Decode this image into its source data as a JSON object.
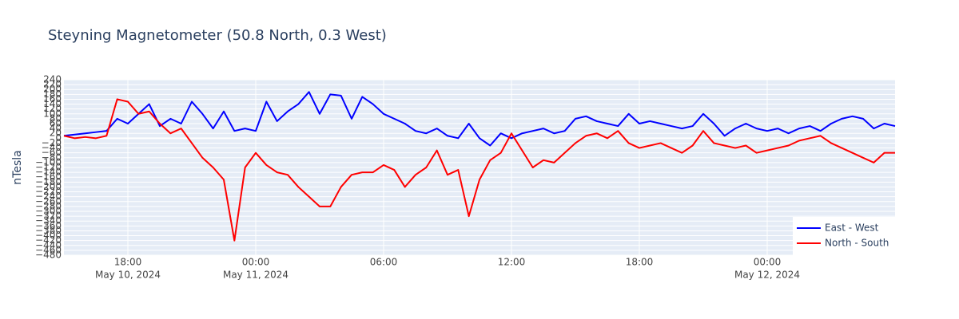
{
  "chart_data": {
    "type": "line",
    "title": "Steyning Magnetometer (50.8 North, 0.3 West)",
    "y_label": "nTesla",
    "x": [
      "2024-05-10 15:00",
      "2024-05-10 15:30",
      "2024-05-10 16:00",
      "2024-05-10 16:30",
      "2024-05-10 17:00",
      "2024-05-10 17:30",
      "2024-05-10 18:00",
      "2024-05-10 18:30",
      "2024-05-10 19:00",
      "2024-05-10 19:30",
      "2024-05-10 20:00",
      "2024-05-10 20:30",
      "2024-05-10 21:00",
      "2024-05-10 21:30",
      "2024-05-10 22:00",
      "2024-05-10 22:30",
      "2024-05-10 23:00",
      "2024-05-10 23:30",
      "2024-05-11 00:00",
      "2024-05-11 00:30",
      "2024-05-11 01:00",
      "2024-05-11 01:30",
      "2024-05-11 02:00",
      "2024-05-11 02:30",
      "2024-05-11 03:00",
      "2024-05-11 03:30",
      "2024-05-11 04:00",
      "2024-05-11 04:30",
      "2024-05-11 05:00",
      "2024-05-11 05:30",
      "2024-05-11 06:00",
      "2024-05-11 06:30",
      "2024-05-11 07:00",
      "2024-05-11 07:30",
      "2024-05-11 08:00",
      "2024-05-11 08:30",
      "2024-05-11 09:00",
      "2024-05-11 09:30",
      "2024-05-11 10:00",
      "2024-05-11 10:30",
      "2024-05-11 11:00",
      "2024-05-11 11:30",
      "2024-05-11 12:00",
      "2024-05-11 12:30",
      "2024-05-11 13:00",
      "2024-05-11 13:30",
      "2024-05-11 14:00",
      "2024-05-11 14:30",
      "2024-05-11 15:00",
      "2024-05-11 15:30",
      "2024-05-11 16:00",
      "2024-05-11 16:30",
      "2024-05-11 17:00",
      "2024-05-11 17:30",
      "2024-05-11 18:00",
      "2024-05-11 18:30",
      "2024-05-11 19:00",
      "2024-05-11 19:30",
      "2024-05-11 20:00",
      "2024-05-11 20:30",
      "2024-05-11 21:00",
      "2024-05-11 21:30",
      "2024-05-11 22:00",
      "2024-05-11 22:30",
      "2024-05-11 23:00",
      "2024-05-11 23:30",
      "2024-05-12 00:00",
      "2024-05-12 00:30",
      "2024-05-12 01:00",
      "2024-05-12 01:30",
      "2024-05-12 02:00",
      "2024-05-12 02:30",
      "2024-05-12 03:00",
      "2024-05-12 03:30",
      "2024-05-12 04:00",
      "2024-05-12 04:30",
      "2024-05-12 05:00",
      "2024-05-12 05:30",
      "2024-05-12 06:00"
    ],
    "series": [
      {
        "name": "East - West",
        "color": "#0000ff",
        "values": [
          10,
          15,
          20,
          25,
          30,
          80,
          60,
          100,
          140,
          50,
          80,
          60,
          150,
          100,
          40,
          110,
          30,
          40,
          30,
          150,
          70,
          110,
          140,
          190,
          100,
          180,
          175,
          80,
          170,
          140,
          100,
          80,
          60,
          30,
          20,
          40,
          10,
          0,
          60,
          0,
          -30,
          20,
          0,
          20,
          30,
          40,
          20,
          30,
          80,
          90,
          70,
          60,
          50,
          100,
          60,
          70,
          60,
          50,
          40,
          50,
          100,
          60,
          10,
          40,
          60,
          40,
          30,
          40,
          20,
          40,
          50,
          30,
          60,
          80,
          90,
          80,
          40,
          60,
          50
        ]
      },
      {
        "name": "North - South",
        "color": "#ff0000",
        "values": [
          10,
          0,
          5,
          0,
          10,
          160,
          150,
          100,
          110,
          60,
          20,
          40,
          -20,
          -80,
          -120,
          -170,
          -420,
          -120,
          -60,
          -110,
          -140,
          -150,
          -200,
          -240,
          -280,
          -280,
          -200,
          -150,
          -140,
          -140,
          -110,
          -130,
          -200,
          -150,
          -120,
          -50,
          -150,
          -130,
          -320,
          -170,
          -90,
          -60,
          20,
          -50,
          -120,
          -90,
          -100,
          -60,
          -20,
          10,
          20,
          0,
          30,
          -20,
          -40,
          -30,
          -20,
          -40,
          -60,
          -30,
          30,
          -20,
          -30,
          -40,
          -30,
          -60,
          -50,
          -40,
          -30,
          -10,
          0,
          10,
          -20,
          -40,
          -60,
          -80,
          -100,
          -60,
          -60
        ]
      }
    ],
    "xlim": [
      "2024-05-10 15:00",
      "2024-05-12 06:00"
    ],
    "xticks": [
      {
        "value": "2024-05-10 18:00",
        "label": "18:00"
      },
      {
        "value": "2024-05-11 00:00",
        "label": "00:00"
      },
      {
        "value": "2024-05-11 06:00",
        "label": "06:00"
      },
      {
        "value": "2024-05-11 12:00",
        "label": "12:00"
      },
      {
        "value": "2024-05-11 18:00",
        "label": "18:00"
      },
      {
        "value": "2024-05-12 00:00",
        "label": "00:00"
      }
    ],
    "x_date_labels": [
      {
        "value": "2024-05-10 18:00",
        "label": "May 10, 2024"
      },
      {
        "value": "2024-05-11 00:00",
        "label": "May 11, 2024"
      },
      {
        "value": "2024-05-12 00:00",
        "label": "May 12, 2024"
      }
    ],
    "ylim": [
      -480,
      240
    ],
    "yticks": [
      240,
      220,
      200,
      180,
      160,
      140,
      120,
      100,
      80,
      60,
      40,
      20,
      0,
      {
        "value": -20,
        "label": "−20"
      },
      {
        "value": -40,
        "label": "−40"
      },
      {
        "value": -60,
        "label": "−60"
      },
      {
        "value": -80,
        "label": "−80"
      },
      {
        "value": -100,
        "label": "−100"
      },
      {
        "value": -120,
        "label": "−120"
      },
      {
        "value": -140,
        "label": "−140"
      },
      {
        "value": -160,
        "label": "−160"
      },
      {
        "value": -180,
        "label": "−180"
      },
      {
        "value": -200,
        "label": "−200"
      },
      {
        "value": -220,
        "label": "−220"
      },
      {
        "value": -240,
        "label": "−240"
      },
      {
        "value": -260,
        "label": "−260"
      },
      {
        "value": -280,
        "label": "−280"
      },
      {
        "value": -300,
        "label": "−300"
      },
      {
        "value": -320,
        "label": "−320"
      },
      {
        "value": -340,
        "label": "−340"
      },
      {
        "value": -360,
        "label": "−360"
      },
      {
        "value": -380,
        "label": "−380"
      },
      {
        "value": -400,
        "label": "−400"
      },
      {
        "value": -420,
        "label": "−420"
      },
      {
        "value": -440,
        "label": "−440"
      },
      {
        "value": -460,
        "label": "−460"
      },
      {
        "value": -480,
        "label": "−480"
      }
    ],
    "grid": true,
    "legend": "bottom-right"
  }
}
